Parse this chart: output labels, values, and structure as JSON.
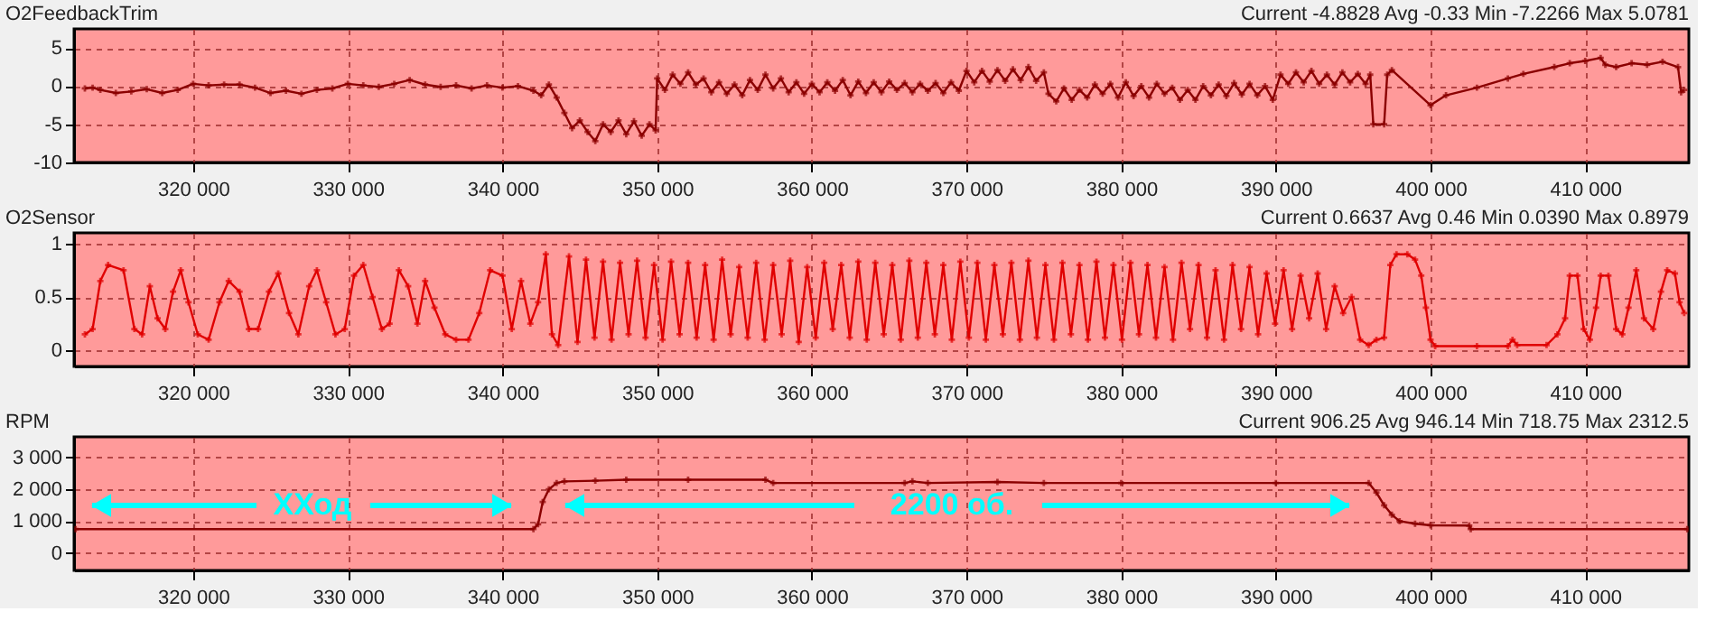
{
  "chart_data": [
    {
      "type": "line",
      "title": "O2FeedbackTrim",
      "annotations": [
        "Current -4.8828 Avg -0.33 Min -7.2266 Max 5.0781"
      ],
      "xlim": [
        312300,
        416700
      ],
      "ylim": [
        -10,
        7.5
      ],
      "yticks": [
        -10,
        -5,
        0,
        5
      ],
      "xticks": [
        {
          "value": 320000,
          "label": "320 000"
        },
        {
          "value": 330000,
          "label": "330 000"
        },
        {
          "value": 340000,
          "label": "340 000"
        },
        {
          "value": 350000,
          "label": "350 000"
        },
        {
          "value": 360000,
          "label": "360 000"
        },
        {
          "value": 370000,
          "label": "370 000"
        },
        {
          "value": 380000,
          "label": "380 000"
        },
        {
          "value": 390000,
          "label": "390 000"
        },
        {
          "value": 400000,
          "label": "400 000"
        },
        {
          "value": 410000,
          "label": "410 000"
        }
      ],
      "grid": true,
      "marker": "cross",
      "line_style": "solid",
      "x": [
        313000,
        313500,
        314000,
        315000,
        316000,
        317000,
        318000,
        319000,
        320000,
        321000,
        322000,
        323000,
        324000,
        325000,
        326000,
        327000,
        328000,
        329000,
        330000,
        331000,
        332000,
        333000,
        334000,
        335000,
        336000,
        337000,
        338000,
        339000,
        340000,
        341000,
        342000,
        342500,
        343000,
        343500,
        344000,
        344500,
        345000,
        345500,
        346000,
        346500,
        347000,
        347500,
        348000,
        348500,
        349000,
        349500,
        349900,
        350000,
        350500,
        351000,
        351500,
        352000,
        352500,
        353000,
        353500,
        354000,
        354500,
        355000,
        355500,
        356000,
        356500,
        357000,
        357500,
        358000,
        358500,
        359000,
        359500,
        360000,
        360500,
        361000,
        361500,
        362000,
        362500,
        363000,
        363500,
        364000,
        364500,
        365000,
        365500,
        366000,
        366500,
        367000,
        367500,
        368000,
        368500,
        369000,
        369500,
        370000,
        370500,
        371000,
        371500,
        372000,
        372500,
        373000,
        373500,
        374000,
        374500,
        375000,
        375300,
        375800,
        376300,
        376800,
        377300,
        377800,
        378300,
        378800,
        379300,
        379800,
        380300,
        380800,
        381300,
        381800,
        382300,
        382800,
        383300,
        383800,
        384300,
        384800,
        385300,
        385800,
        386300,
        386800,
        387300,
        387800,
        388300,
        388800,
        389300,
        389800,
        390300,
        390800,
        391300,
        391800,
        392300,
        392800,
        393300,
        393800,
        394300,
        394800,
        395300,
        395800,
        396100,
        396300,
        397000,
        397200,
        397500,
        400000,
        401000,
        403000,
        405000,
        406000,
        408000,
        409000,
        410000,
        411000,
        411300,
        412000,
        413000,
        414000,
        415000,
        416000,
        416200,
        416400
      ],
      "series": [
        {
          "color": "#8b0000",
          "values": [
            -0.3,
            -0.2,
            -0.5,
            -0.9,
            -0.7,
            -0.4,
            -0.9,
            -0.5,
            0.3,
            0.1,
            0.2,
            0.2,
            -0.2,
            -0.9,
            -0.6,
            -1.0,
            -0.5,
            -0.3,
            0.3,
            0.1,
            -0.1,
            0.3,
            0.8,
            0.2,
            -0.1,
            0.1,
            -0.3,
            0.1,
            -0.2,
            0.0,
            -0.6,
            -1.2,
            0.2,
            -1.5,
            -3.5,
            -5.5,
            -4.5,
            -6.0,
            -7.2,
            -5.0,
            -6.0,
            -4.5,
            -6.3,
            -4.6,
            -6.5,
            -5.0,
            -5.8,
            1.0,
            -0.5,
            1.5,
            0.3,
            1.8,
            0.2,
            1.0,
            -0.8,
            0.5,
            -1.0,
            0.2,
            -1.2,
            0.8,
            -0.5,
            1.5,
            -0.3,
            1.0,
            -0.8,
            0.5,
            -1.0,
            0.3,
            -0.8,
            0.5,
            -0.6,
            0.8,
            -1.2,
            0.6,
            -0.9,
            0.5,
            -0.8,
            0.6,
            -0.5,
            0.4,
            -0.8,
            0.3,
            -0.6,
            0.4,
            -0.9,
            0.5,
            -0.6,
            2.0,
            0.5,
            2.0,
            0.6,
            2.1,
            0.7,
            2.2,
            0.8,
            2.5,
            0.7,
            1.8,
            -1.0,
            -2.0,
            -0.3,
            -1.8,
            -0.5,
            -1.5,
            0.2,
            -1.0,
            0.3,
            -1.5,
            0.5,
            -1.3,
            0.0,
            -1.5,
            0.3,
            -1.0,
            -0.2,
            -1.8,
            -0.5,
            -1.8,
            0.0,
            -1.2,
            0.2,
            -1.3,
            0.4,
            -1.1,
            0.3,
            -1.2,
            0.0,
            -1.8,
            1.5,
            0.3,
            1.8,
            0.5,
            2.0,
            0.3,
            1.5,
            0.2,
            1.8,
            0.5,
            1.6,
            0.3,
            1.5,
            -5.0,
            -5.0,
            1.5,
            2.1,
            -2.5,
            -1.2,
            -0.2,
            1.0,
            1.6,
            2.5,
            3.0,
            3.3,
            3.7,
            2.8,
            2.5,
            3.0,
            2.8,
            3.2,
            2.5,
            -0.8,
            -0.5
          ]
        }
      ]
    },
    {
      "type": "line",
      "title": "O2Sensor",
      "annotations": [
        "Current 0.6637 Avg 0.46 Min 0.0390 Max 0.8979"
      ],
      "xlim": [
        312300,
        416700
      ],
      "ylim": [
        -0.15,
        1.1
      ],
      "yticks": [
        0,
        0.5,
        1
      ],
      "xticks": [
        {
          "value": 320000,
          "label": "320 000"
        },
        {
          "value": 330000,
          "label": "330 000"
        },
        {
          "value": 340000,
          "label": "340 000"
        },
        {
          "value": 350000,
          "label": "350 000"
        },
        {
          "value": 360000,
          "label": "360 000"
        },
        {
          "value": 370000,
          "label": "370 000"
        },
        {
          "value": 380000,
          "label": "380 000"
        },
        {
          "value": 390000,
          "label": "390 000"
        },
        {
          "value": 400000,
          "label": "400 000"
        },
        {
          "value": 410000,
          "label": "410 000"
        }
      ],
      "grid": true,
      "marker": "cross",
      "line_style": "solid",
      "x": [
        313000,
        313500,
        314000,
        314500,
        315500,
        316200,
        316700,
        317200,
        317700,
        318200,
        318700,
        319200,
        319700,
        320300,
        321000,
        321700,
        322300,
        323000,
        323600,
        324200,
        324900,
        325500,
        326200,
        326800,
        327500,
        328000,
        328600,
        329200,
        329800,
        330400,
        331000,
        331600,
        332200,
        332700,
        333300,
        333900,
        334500,
        335000,
        335600,
        336300,
        337000,
        337800,
        338500,
        339200,
        340000,
        340600,
        341200,
        341800,
        342300,
        342800,
        343200,
        343600,
        344300,
        344850,
        345400,
        345950,
        346500,
        347050,
        347600,
        348150,
        348700,
        349250,
        349800,
        350350,
        350900,
        351450,
        352000,
        352550,
        353100,
        353650,
        354200,
        354750,
        355300,
        355850,
        356400,
        356950,
        357500,
        358050,
        358600,
        359150,
        359700,
        360250,
        360800,
        361350,
        361900,
        362450,
        363000,
        363550,
        364100,
        364650,
        365200,
        365750,
        366300,
        366850,
        367400,
        367950,
        368500,
        369050,
        369600,
        370150,
        370700,
        371250,
        371800,
        372350,
        372900,
        373450,
        374000,
        374550,
        375100,
        375650,
        376200,
        376750,
        377300,
        377850,
        378400,
        378950,
        379500,
        380050,
        380600,
        381150,
        381700,
        382250,
        382800,
        383350,
        383900,
        384450,
        385000,
        385550,
        386100,
        386650,
        387200,
        387750,
        388300,
        388850,
        389400,
        389950,
        390500,
        391050,
        391600,
        392150,
        392700,
        393250,
        393800,
        394350,
        394900,
        395450,
        396000,
        396500,
        397000,
        397400,
        397800,
        398500,
        399000,
        399400,
        399700,
        400000,
        400300,
        403000,
        405000,
        405300,
        405600,
        407500,
        408200,
        408700,
        409000,
        409500,
        409900,
        410300,
        410700,
        411000,
        411500,
        412000,
        412400,
        412800,
        413300,
        413800,
        414400,
        414900,
        415300,
        415800,
        416100,
        416400
      ],
      "series": [
        {
          "color": "#e00000",
          "values": [
            0.15,
            0.2,
            0.65,
            0.8,
            0.75,
            0.2,
            0.15,
            0.6,
            0.3,
            0.2,
            0.55,
            0.75,
            0.45,
            0.15,
            0.1,
            0.45,
            0.65,
            0.55,
            0.2,
            0.2,
            0.55,
            0.72,
            0.35,
            0.15,
            0.6,
            0.75,
            0.45,
            0.15,
            0.2,
            0.7,
            0.8,
            0.5,
            0.2,
            0.25,
            0.75,
            0.6,
            0.25,
            0.65,
            0.4,
            0.15,
            0.1,
            0.1,
            0.35,
            0.75,
            0.7,
            0.2,
            0.65,
            0.25,
            0.45,
            0.9,
            0.15,
            0.05,
            0.88,
            0.08,
            0.85,
            0.12,
            0.83,
            0.1,
            0.82,
            0.15,
            0.84,
            0.12,
            0.8,
            0.1,
            0.83,
            0.15,
            0.82,
            0.12,
            0.8,
            0.1,
            0.85,
            0.15,
            0.78,
            0.12,
            0.82,
            0.1,
            0.8,
            0.15,
            0.84,
            0.08,
            0.78,
            0.12,
            0.82,
            0.2,
            0.8,
            0.12,
            0.83,
            0.1,
            0.82,
            0.15,
            0.8,
            0.1,
            0.84,
            0.12,
            0.82,
            0.15,
            0.8,
            0.1,
            0.83,
            0.12,
            0.82,
            0.1,
            0.8,
            0.15,
            0.82,
            0.1,
            0.84,
            0.12,
            0.8,
            0.1,
            0.82,
            0.15,
            0.8,
            0.1,
            0.83,
            0.12,
            0.8,
            0.1,
            0.82,
            0.15,
            0.8,
            0.12,
            0.78,
            0.1,
            0.82,
            0.2,
            0.8,
            0.12,
            0.75,
            0.1,
            0.8,
            0.2,
            0.78,
            0.15,
            0.72,
            0.25,
            0.75,
            0.2,
            0.7,
            0.3,
            0.72,
            0.2,
            0.6,
            0.35,
            0.5,
            0.1,
            0.05,
            0.1,
            0.12,
            0.8,
            0.9,
            0.9,
            0.85,
            0.7,
            0.4,
            0.1,
            0.04,
            0.04,
            0.04,
            0.1,
            0.05,
            0.05,
            0.15,
            0.3,
            0.7,
            0.7,
            0.2,
            0.1,
            0.4,
            0.7,
            0.7,
            0.2,
            0.15,
            0.4,
            0.75,
            0.3,
            0.2,
            0.55,
            0.75,
            0.72,
            0.45,
            0.35
          ]
        }
      ]
    },
    {
      "type": "line",
      "title": "RPM",
      "annotations": [
        "Current 906.25 Avg 946.14 Min 718.75 Max 2312.5",
        "ХХод",
        "2200 об."
      ],
      "xlim": [
        312300,
        416700
      ],
      "ylim": [
        -550,
        3650
      ],
      "yticks": [
        0,
        {
          "value": 1000,
          "label": "1 000"
        },
        {
          "value": 2000,
          "label": "2 000"
        },
        {
          "value": 3000,
          "label": "3 000"
        }
      ],
      "xticks": [
        {
          "value": 320000,
          "label": "320 000"
        },
        {
          "value": 330000,
          "label": "330 000"
        },
        {
          "value": 340000,
          "label": "340 000"
        },
        {
          "value": 350000,
          "label": "350 000"
        },
        {
          "value": 360000,
          "label": "360 000"
        },
        {
          "value": 370000,
          "label": "370 000"
        },
        {
          "value": 380000,
          "label": "380 000"
        },
        {
          "value": 390000,
          "label": "390 000"
        },
        {
          "value": 400000,
          "label": "400 000"
        },
        {
          "value": 410000,
          "label": "410 000"
        }
      ],
      "grid": true,
      "marker": "cross",
      "line_style": "solid",
      "x": [
        312400,
        342000,
        342300,
        342600,
        343000,
        343500,
        344000,
        346000,
        348000,
        352000,
        357000,
        357500,
        366000,
        366500,
        367500,
        372000,
        375000,
        380000,
        390000,
        396000,
        396500,
        397000,
        397500,
        398000,
        399000,
        400000,
        402500,
        402600,
        416600
      ],
      "series": [
        {
          "color": "#8b0000",
          "values": [
            750,
            750,
            900,
            1600,
            2000,
            2200,
            2250,
            2270,
            2300,
            2300,
            2300,
            2200,
            2200,
            2250,
            2200,
            2230,
            2200,
            2200,
            2200,
            2200,
            1900,
            1500,
            1200,
            1000,
            920,
            870,
            860,
            750,
            750
          ]
        }
      ]
    }
  ]
}
